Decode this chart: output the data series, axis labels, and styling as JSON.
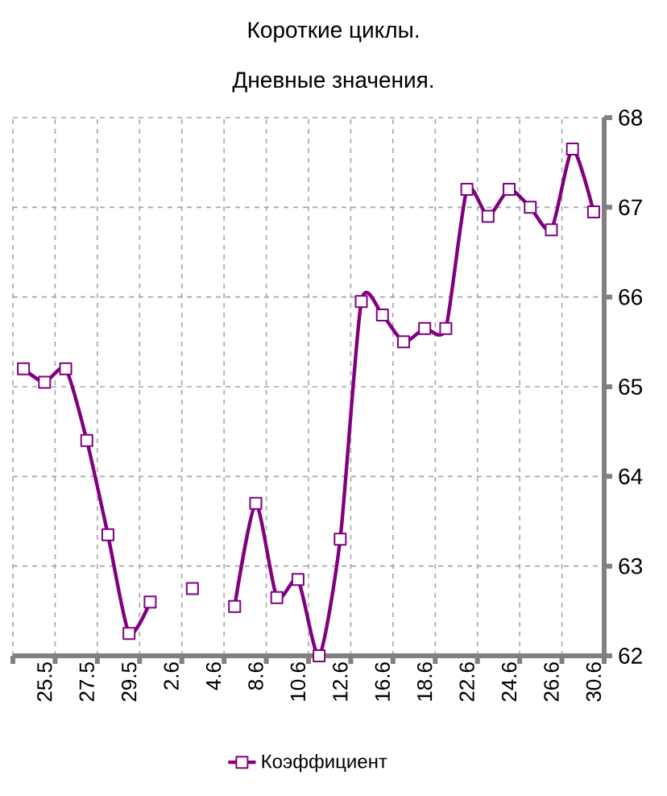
{
  "chart_data": {
    "type": "line",
    "title": "Короткие циклы.",
    "subtitle": "Дневные значения.",
    "categories": [
      null,
      "25.5",
      null,
      "27.5",
      null,
      "29.5",
      null,
      "2.6",
      null,
      "4.6",
      null,
      "8.6",
      null,
      "10.6",
      null,
      "12.6",
      null,
      "16.6",
      null,
      "18.6",
      null,
      "22.6",
      null,
      "24.6",
      null,
      "26.6",
      null,
      "30.6"
    ],
    "series": [
      {
        "name": "Коэффициент",
        "color": "#800080",
        "values": [
          65.2,
          65.05,
          65.2,
          64.4,
          63.35,
          62.25,
          62.6,
          null,
          62.75,
          null,
          62.55,
          63.7,
          62.65,
          62.85,
          62.0,
          63.3,
          65.95,
          65.8,
          65.5,
          65.65,
          65.65,
          67.2,
          66.9,
          67.2,
          67.0,
          66.75,
          67.65,
          66.95
        ]
      }
    ],
    "ylim": [
      62,
      68
    ],
    "yticks": [
      62,
      63,
      64,
      65,
      66,
      67,
      68
    ],
    "grid": true,
    "legend": "bottom",
    "marker": "square",
    "line_style": "solid"
  }
}
